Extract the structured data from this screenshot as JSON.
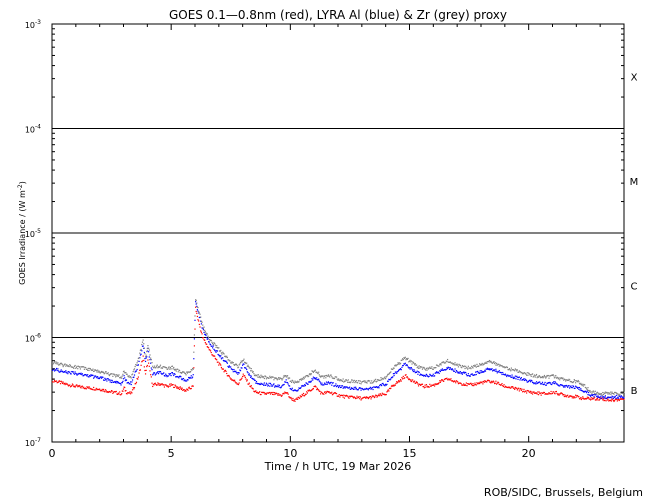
{
  "chart_data": {
    "type": "scatter",
    "title": "GOES 0.1—0.8nm (red), LYRA Al (blue) & Zr (grey) proxy",
    "xlabel": "Time / h UTC, 19 Mar 2026",
    "ylabel": "GOES Irradiance / (W m",
    "ylabel_sup": "-2",
    "ylabel_close": ")",
    "xlim": [
      0,
      24
    ],
    "ylim": [
      1e-07,
      0.001
    ],
    "yscale": "log",
    "xticks": [
      0,
      5,
      10,
      15,
      20
    ],
    "xtick_labels": [
      "0",
      "5",
      "10",
      "15",
      "20"
    ],
    "yticks": [
      {
        "value": 1e-07,
        "base": "10",
        "exp": "-7"
      },
      {
        "value": 1e-06,
        "base": "10",
        "exp": "-6"
      },
      {
        "value": 1e-05,
        "base": "10",
        "exp": "-5"
      },
      {
        "value": 0.0001,
        "base": "10",
        "exp": "-4"
      },
      {
        "value": 0.001,
        "base": "10",
        "exp": "-3"
      }
    ],
    "class_lines": [
      1e-06,
      1e-05,
      0.0001
    ],
    "flare_classes": [
      {
        "label": "B",
        "value": 3.16e-07
      },
      {
        "label": "C",
        "value": 3.16e-06
      },
      {
        "label": "M",
        "value": 3.16e-05
      },
      {
        "label": "X",
        "value": 0.000316
      }
    ],
    "footer": "ROB/SIDC, Brussels, Belgium",
    "series": [
      {
        "color": "#ff0000",
        "x": [
          0.0,
          0.5,
          1.0,
          1.5,
          2.0,
          2.5,
          2.9,
          3.0,
          3.1,
          3.3,
          3.6,
          3.8,
          3.9,
          4.0,
          4.2,
          4.5,
          4.8,
          5.0,
          5.3,
          5.6,
          5.9,
          6.0,
          6.1,
          6.3,
          6.6,
          7.0,
          7.5,
          7.8,
          8.0,
          8.2,
          8.5,
          8.8,
          9.2,
          9.6,
          9.8,
          10.0,
          10.2,
          10.5,
          10.8,
          11.0,
          11.3,
          11.6,
          12.0,
          12.3,
          12.6,
          13.0,
          13.5,
          14.0,
          14.3,
          14.6,
          14.8,
          15.0,
          15.3,
          15.6,
          16.0,
          16.3,
          16.6,
          17.0,
          17.5,
          18.0,
          18.3,
          18.6,
          19.0,
          19.5,
          20.0,
          20.5,
          20.8,
          21.0,
          21.5,
          22.0,
          22.3,
          22.6,
          23.0,
          23.5,
          24.0
        ],
        "y": [
          3.9e-07,
          3.6e-07,
          3.4e-07,
          3.3e-07,
          3.2e-07,
          3e-07,
          2.9e-07,
          3.3e-07,
          3e-07,
          2.9e-07,
          4.2e-07,
          6.5e-07,
          4.4e-07,
          6e-07,
          3.5e-07,
          3.6e-07,
          3.4e-07,
          3.5e-07,
          3.3e-07,
          3.1e-07,
          3.4e-07,
          1.9e-06,
          1.5e-06,
          1e-06,
          7.5e-07,
          5.5e-07,
          4e-07,
          3.6e-07,
          4.4e-07,
          3.7e-07,
          3e-07,
          2.9e-07,
          2.9e-07,
          2.8e-07,
          3e-07,
          2.6e-07,
          2.5e-07,
          2.8e-07,
          3.1e-07,
          3.4e-07,
          2.9e-07,
          3e-07,
          2.8e-07,
          2.7e-07,
          2.7e-07,
          2.6e-07,
          2.7e-07,
          2.9e-07,
          3.5e-07,
          3.9e-07,
          4.3e-07,
          4e-07,
          3.6e-07,
          3.4e-07,
          3.5e-07,
          3.8e-07,
          4e-07,
          3.7e-07,
          3.5e-07,
          3.7e-07,
          3.8e-07,
          3.7e-07,
          3.4e-07,
          3.2e-07,
          3e-07,
          2.9e-07,
          2.9e-07,
          3e-07,
          2.8e-07,
          2.7e-07,
          2.6e-07,
          2.6e-07,
          2.6e-07,
          2.5e-07,
          2.6e-07
        ]
      },
      {
        "color": "#0000ff",
        "x": [
          0.0,
          0.5,
          1.0,
          1.5,
          2.0,
          2.5,
          2.9,
          3.0,
          3.1,
          3.3,
          3.6,
          3.8,
          3.9,
          4.0,
          4.2,
          4.5,
          4.8,
          5.0,
          5.3,
          5.6,
          5.9,
          6.0,
          6.1,
          6.3,
          6.6,
          7.0,
          7.5,
          7.8,
          8.0,
          8.2,
          8.5,
          8.8,
          9.2,
          9.6,
          9.8,
          10.0,
          10.2,
          10.5,
          10.8,
          11.0,
          11.3,
          11.6,
          12.0,
          12.3,
          12.6,
          13.0,
          13.5,
          14.0,
          14.3,
          14.6,
          14.8,
          15.0,
          15.3,
          15.6,
          16.0,
          16.3,
          16.6,
          17.0,
          17.5,
          18.0,
          18.3,
          18.6,
          19.0,
          19.5,
          20.0,
          20.5,
          20.8,
          21.0,
          21.5,
          22.0,
          22.3,
          22.6,
          23.0,
          23.5,
          24.0
        ],
        "y": [
          5e-07,
          4.7e-07,
          4.5e-07,
          4.3e-07,
          4.1e-07,
          3.8e-07,
          3.6e-07,
          4.2e-07,
          3.8e-07,
          3.6e-07,
          5.5e-07,
          8.5e-07,
          5.8e-07,
          7.8e-07,
          4.5e-07,
          4.6e-07,
          4.3e-07,
          4.5e-07,
          4.2e-07,
          3.9e-07,
          4.3e-07,
          2.2e-06,
          1.8e-06,
          1.2e-06,
          8.8e-07,
          6.8e-07,
          5e-07,
          4.5e-07,
          5.5e-07,
          4.6e-07,
          3.8e-07,
          3.6e-07,
          3.5e-07,
          3.4e-07,
          3.8e-07,
          3.2e-07,
          3.1e-07,
          3.4e-07,
          3.8e-07,
          4.2e-07,
          3.6e-07,
          3.7e-07,
          3.4e-07,
          3.3e-07,
          3.3e-07,
          3.2e-07,
          3.3e-07,
          3.6e-07,
          4.4e-07,
          5e-07,
          5.6e-07,
          5.1e-07,
          4.6e-07,
          4.3e-07,
          4.4e-07,
          4.8e-07,
          5.2e-07,
          4.7e-07,
          4.4e-07,
          4.7e-07,
          5e-07,
          4.8e-07,
          4.4e-07,
          4.1e-07,
          3.8e-07,
          3.6e-07,
          3.6e-07,
          3.7e-07,
          3.4e-07,
          3.3e-07,
          3.1e-07,
          2.8e-07,
          2.7e-07,
          2.7e-07,
          2.7e-07
        ]
      },
      {
        "color": "#808080",
        "x": [
          0.0,
          0.5,
          1.0,
          1.5,
          2.0,
          2.5,
          2.9,
          3.0,
          3.1,
          3.3,
          3.6,
          3.8,
          3.9,
          4.0,
          4.2,
          4.5,
          4.8,
          5.0,
          5.3,
          5.6,
          5.9,
          6.0,
          6.1,
          6.3,
          6.6,
          7.0,
          7.5,
          7.8,
          8.0,
          8.2,
          8.5,
          8.8,
          9.2,
          9.6,
          9.8,
          10.0,
          10.2,
          10.5,
          10.8,
          11.0,
          11.3,
          11.6,
          12.0,
          12.3,
          12.6,
          13.0,
          13.5,
          14.0,
          14.3,
          14.6,
          14.8,
          15.0,
          15.3,
          15.6,
          16.0,
          16.3,
          16.6,
          17.0,
          17.5,
          18.0,
          18.3,
          18.6,
          19.0,
          19.5,
          20.0,
          20.5,
          20.8,
          21.0,
          21.5,
          22.0,
          22.3,
          22.6,
          23.0,
          23.5,
          24.0
        ],
        "y": [
          5.8e-07,
          5.4e-07,
          5.2e-07,
          5e-07,
          4.7e-07,
          4.4e-07,
          4.2e-07,
          4.8e-07,
          4.4e-07,
          4.2e-07,
          6.2e-07,
          9.3e-07,
          6.5e-07,
          8.6e-07,
          5.2e-07,
          5.3e-07,
          5e-07,
          5.2e-07,
          4.8e-07,
          4.5e-07,
          5e-07,
          2.3e-06,
          1.9e-06,
          1.3e-06,
          9.6e-07,
          7.6e-07,
          5.8e-07,
          5.2e-07,
          6.2e-07,
          5.3e-07,
          4.4e-07,
          4.2e-07,
          4.1e-07,
          4e-07,
          4.4e-07,
          3.8e-07,
          3.7e-07,
          4e-07,
          4.5e-07,
          4.9e-07,
          4.2e-07,
          4.3e-07,
          4e-07,
          3.8e-07,
          3.8e-07,
          3.7e-07,
          3.8e-07,
          4.2e-07,
          5.1e-07,
          5.8e-07,
          6.4e-07,
          5.9e-07,
          5.3e-07,
          5e-07,
          5.1e-07,
          5.6e-07,
          6e-07,
          5.4e-07,
          5.1e-07,
          5.5e-07,
          5.9e-07,
          5.6e-07,
          5.1e-07,
          4.8e-07,
          4.4e-07,
          4.2e-07,
          4.2e-07,
          4.3e-07,
          3.9e-07,
          3.8e-07,
          3.5e-07,
          3e-07,
          2.9e-07,
          2.9e-07,
          2.9e-07
        ]
      }
    ]
  }
}
